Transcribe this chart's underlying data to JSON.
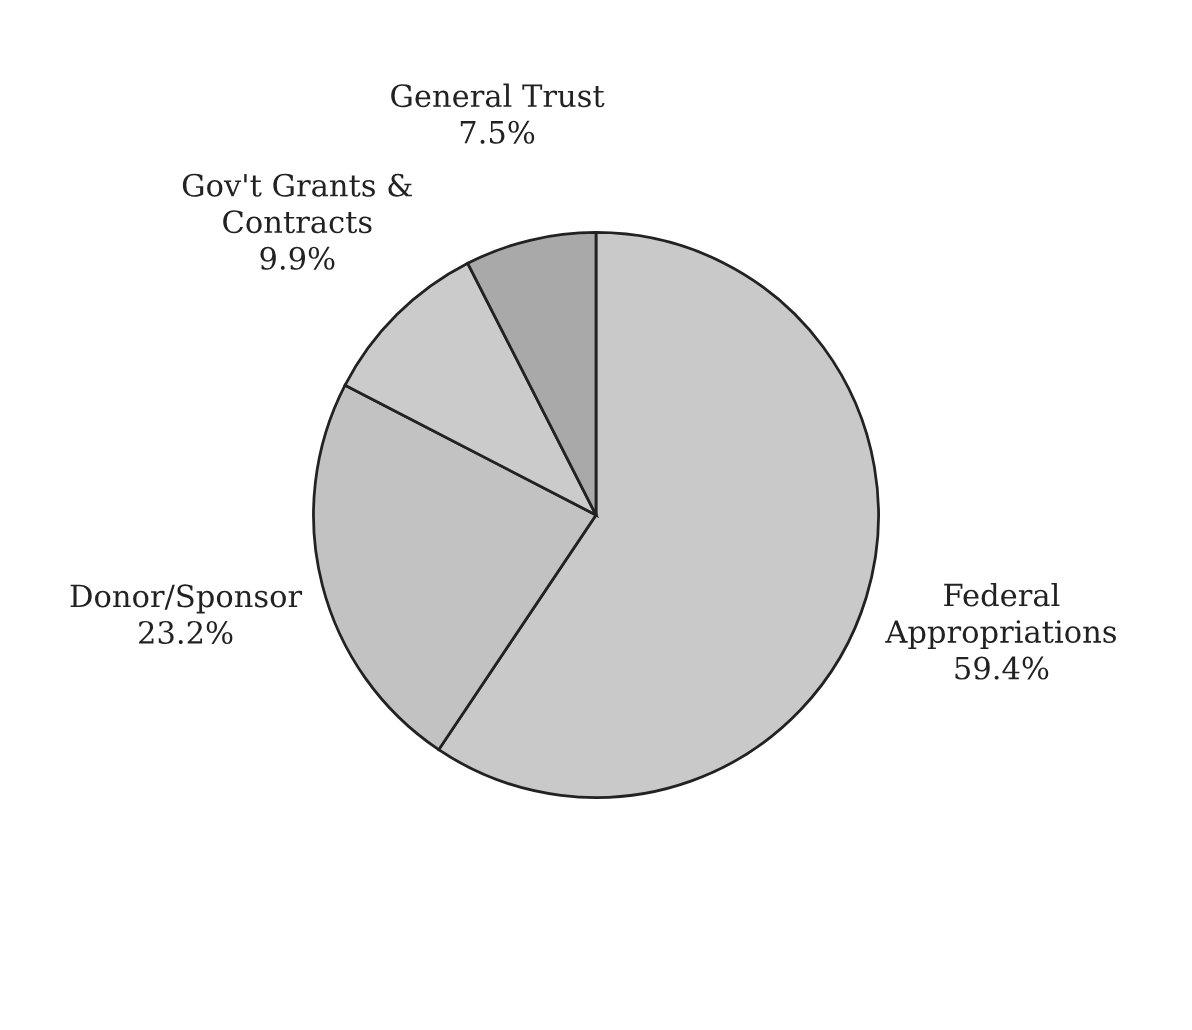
{
  "chart_data": {
    "type": "pie",
    "categories": [
      "Federal\nAppropriations",
      "Donor/Sponsor",
      "Gov't Grants &\nContracts",
      "General Trust"
    ],
    "values": [
      59.4,
      23.2,
      9.9,
      7.5
    ],
    "value_labels": [
      "59.4%",
      "23.2%",
      "9.9%",
      "7.5%"
    ],
    "colors": [
      "#c9c9c9",
      "#c2c2c2",
      "#cbcbcb",
      "#a9a9a9"
    ]
  }
}
